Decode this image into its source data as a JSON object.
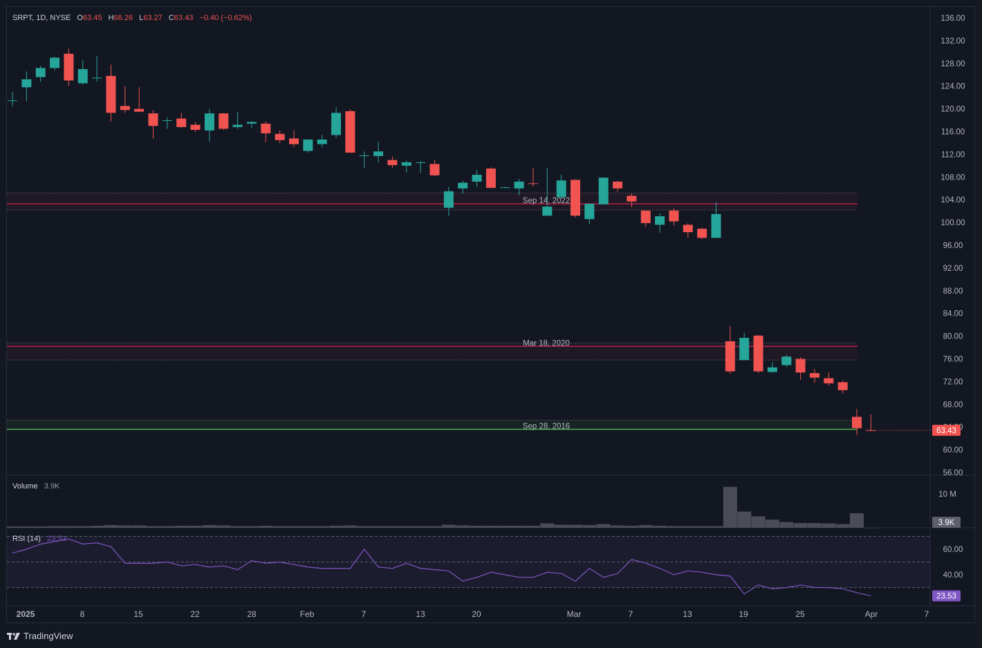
{
  "header": {
    "symbol": "SRPT, 1D, NYSE",
    "open_label": "O",
    "open": "63.45",
    "high_label": "H",
    "high": "66.26",
    "low_label": "L",
    "low": "63.27",
    "close_label": "C",
    "close": "63.43",
    "change": "−0.40 (−0.62%)"
  },
  "price_axis": {
    "ticks": [
      "136.00",
      "132.00",
      "128.00",
      "124.00",
      "120.00",
      "116.00",
      "112.00",
      "108.00",
      "104.00",
      "100.00",
      "96.00",
      "92.00",
      "88.00",
      "84.00",
      "80.00",
      "76.00",
      "72.00",
      "68.00",
      "64.00",
      "60.00",
      "56.00"
    ],
    "last_price_label": "63.43"
  },
  "zones": [
    {
      "label": "Sep 14, 2022",
      "level": 103.3,
      "upper": 105.2,
      "lower": 102.2,
      "color": "#b2224b"
    },
    {
      "label": "Mar 18, 2020",
      "level": 78.2,
      "upper": 78.8,
      "lower": 75.8,
      "color": "#b2224b"
    },
    {
      "label": "Sep 28, 2016",
      "level": 63.6,
      "upper": 65.2,
      "lower": 63.6,
      "color": "#4caf50"
    }
  ],
  "volume": {
    "label": "Volume",
    "value": "3.9K",
    "axis_tick": "10 M",
    "last_label": "3.9K"
  },
  "rsi": {
    "label": "RSI (14)",
    "value": "23.53",
    "ticks": [
      "60.00",
      "40.00"
    ],
    "last_label": "23.53",
    "bands": [
      70,
      50,
      30
    ]
  },
  "time_axis": [
    "2025",
    "8",
    "15",
    "22",
    "28",
    "Feb",
    "7",
    "13",
    "20",
    "Mar",
    "7",
    "13",
    "19",
    "25",
    "Apr",
    "7"
  ],
  "footer": {
    "brand": "TradingView"
  },
  "colors": {
    "up": "#26a69a",
    "down": "#f05350",
    "rsi": "#7e57c2",
    "volume": "#4a4d55"
  },
  "chart_data": {
    "type": "candlestick",
    "symbol": "SRPT",
    "interval": "1D",
    "exchange": "NYSE",
    "ylim": [
      56,
      136
    ],
    "candles": [
      {
        "o": 121.5,
        "h": 123.0,
        "l": 120.5,
        "c": 121.5
      },
      {
        "o": 123.8,
        "h": 126.6,
        "l": 121.4,
        "c": 125.2
      },
      {
        "o": 125.6,
        "h": 127.6,
        "l": 124.8,
        "c": 127.2
      },
      {
        "o": 127.2,
        "h": 129.2,
        "l": 126.8,
        "c": 129.0
      },
      {
        "o": 129.7,
        "h": 130.6,
        "l": 124.0,
        "c": 125.0
      },
      {
        "o": 124.5,
        "h": 128.5,
        "l": 124.3,
        "c": 127.0
      },
      {
        "o": 125.5,
        "h": 129.3,
        "l": 124.8,
        "c": 125.5
      },
      {
        "o": 125.8,
        "h": 127.8,
        "l": 117.8,
        "c": 119.3
      },
      {
        "o": 120.5,
        "h": 124.0,
        "l": 119.3,
        "c": 119.8
      },
      {
        "o": 120.0,
        "h": 123.8,
        "l": 119.5,
        "c": 119.5
      },
      {
        "o": 119.2,
        "h": 119.8,
        "l": 114.8,
        "c": 117.0
      },
      {
        "o": 118.0,
        "h": 118.5,
        "l": 116.5,
        "c": 118.0
      },
      {
        "o": 118.3,
        "h": 119.3,
        "l": 116.7,
        "c": 116.8
      },
      {
        "o": 117.2,
        "h": 117.7,
        "l": 115.9,
        "c": 116.3
      },
      {
        "o": 116.2,
        "h": 120.0,
        "l": 114.2,
        "c": 119.2
      },
      {
        "o": 119.2,
        "h": 119.3,
        "l": 116.3,
        "c": 116.5
      },
      {
        "o": 116.8,
        "h": 119.5,
        "l": 116.5,
        "c": 117.2
      },
      {
        "o": 117.4,
        "h": 117.8,
        "l": 116.6,
        "c": 117.7
      },
      {
        "o": 117.4,
        "h": 117.8,
        "l": 114.1,
        "c": 115.7
      },
      {
        "o": 115.6,
        "h": 116.2,
        "l": 114.0,
        "c": 114.5
      },
      {
        "o": 114.8,
        "h": 116.2,
        "l": 113.3,
        "c": 113.8
      },
      {
        "o": 112.6,
        "h": 114.6,
        "l": 112.3,
        "c": 114.6
      },
      {
        "o": 113.8,
        "h": 115.4,
        "l": 113.2,
        "c": 114.6
      },
      {
        "o": 115.4,
        "h": 120.3,
        "l": 114.9,
        "c": 119.3
      },
      {
        "o": 119.6,
        "h": 119.9,
        "l": 112.3,
        "c": 112.3
      },
      {
        "o": 111.8,
        "h": 112.5,
        "l": 109.6,
        "c": 111.8
      },
      {
        "o": 111.7,
        "h": 114.2,
        "l": 110.6,
        "c": 112.5
      },
      {
        "o": 111.0,
        "h": 111.6,
        "l": 109.6,
        "c": 110.1
      },
      {
        "o": 110.0,
        "h": 110.9,
        "l": 108.8,
        "c": 110.6
      },
      {
        "o": 110.6,
        "h": 110.8,
        "l": 108.7,
        "c": 110.6
      },
      {
        "o": 110.3,
        "h": 111.0,
        "l": 108.2,
        "c": 108.3
      },
      {
        "o": 102.6,
        "h": 106.3,
        "l": 101.2,
        "c": 105.5
      },
      {
        "o": 106.0,
        "h": 107.4,
        "l": 105.1,
        "c": 107.0
      },
      {
        "o": 107.2,
        "h": 109.3,
        "l": 106.3,
        "c": 108.4
      },
      {
        "o": 109.5,
        "h": 109.7,
        "l": 106.0,
        "c": 106.1
      },
      {
        "o": 106.2,
        "h": 106.3,
        "l": 106.0,
        "c": 106.2
      },
      {
        "o": 106.0,
        "h": 107.7,
        "l": 104.8,
        "c": 107.2
      },
      {
        "o": 106.9,
        "h": 109.6,
        "l": 106.3,
        "c": 106.8
      },
      {
        "o": 101.2,
        "h": 109.6,
        "l": 101.2,
        "c": 102.8
      },
      {
        "o": 104.5,
        "h": 108.4,
        "l": 104.2,
        "c": 107.4
      },
      {
        "o": 107.5,
        "h": 107.6,
        "l": 100.9,
        "c": 101.2
      },
      {
        "o": 100.6,
        "h": 103.4,
        "l": 99.7,
        "c": 103.3
      },
      {
        "o": 103.2,
        "h": 107.9,
        "l": 103.2,
        "c": 107.9
      },
      {
        "o": 107.2,
        "h": 107.3,
        "l": 105.4,
        "c": 106.0
      },
      {
        "o": 104.7,
        "h": 105.1,
        "l": 102.7,
        "c": 103.7
      },
      {
        "o": 102.1,
        "h": 102.1,
        "l": 99.2,
        "c": 99.9
      },
      {
        "o": 99.6,
        "h": 101.6,
        "l": 98.2,
        "c": 101.1
      },
      {
        "o": 102.1,
        "h": 102.5,
        "l": 99.5,
        "c": 100.2
      },
      {
        "o": 99.6,
        "h": 99.9,
        "l": 97.3,
        "c": 98.3
      },
      {
        "o": 98.9,
        "h": 99.1,
        "l": 97.1,
        "c": 97.3
      },
      {
        "o": 97.3,
        "h": 103.6,
        "l": 97.3,
        "c": 101.5
      },
      {
        "o": 79.1,
        "h": 81.8,
        "l": 73.4,
        "c": 73.8
      },
      {
        "o": 75.8,
        "h": 80.6,
        "l": 75.8,
        "c": 79.7
      },
      {
        "o": 80.1,
        "h": 80.2,
        "l": 73.5,
        "c": 73.8
      },
      {
        "o": 73.7,
        "h": 75.4,
        "l": 73.5,
        "c": 74.5
      },
      {
        "o": 74.9,
        "h": 76.7,
        "l": 74.6,
        "c": 76.4
      },
      {
        "o": 76.0,
        "h": 76.3,
        "l": 72.3,
        "c": 73.6
      },
      {
        "o": 73.5,
        "h": 74.2,
        "l": 71.8,
        "c": 72.7
      },
      {
        "o": 72.6,
        "h": 73.6,
        "l": 71.3,
        "c": 71.7
      },
      {
        "o": 71.9,
        "h": 72.2,
        "l": 69.9,
        "c": 70.5
      },
      {
        "o": 65.8,
        "h": 67.2,
        "l": 62.6,
        "c": 63.8
      },
      {
        "o": 63.45,
        "h": 66.26,
        "l": 63.27,
        "c": 63.43
      }
    ],
    "volume_millions": [
      0.4,
      0.4,
      0.4,
      0.5,
      0.5,
      0.5,
      0.6,
      0.8,
      0.7,
      0.7,
      0.5,
      0.5,
      0.6,
      0.6,
      0.8,
      0.7,
      0.5,
      0.5,
      0.6,
      0.5,
      0.5,
      0.5,
      0.5,
      0.6,
      0.7,
      0.5,
      0.5,
      0.5,
      0.5,
      0.5,
      0.5,
      0.9,
      0.7,
      0.6,
      0.6,
      0.6,
      0.6,
      0.6,
      1.3,
      0.9,
      0.9,
      0.8,
      1.1,
      0.7,
      0.6,
      0.8,
      0.6,
      0.5,
      0.5,
      0.5,
      0.5,
      12.1,
      4.8,
      3.4,
      2.4,
      1.7,
      1.4,
      1.4,
      1.3,
      1.1,
      4.3,
      0.0039
    ],
    "rsi": [
      57,
      60,
      64,
      66,
      68,
      64,
      65,
      62,
      49,
      49,
      49,
      50,
      47,
      48,
      46,
      47,
      44,
      51,
      49,
      50,
      48,
      46,
      45,
      45,
      45,
      60,
      46,
      45,
      49,
      45,
      44,
      43,
      35,
      38,
      42,
      40,
      38,
      38,
      42,
      41,
      35,
      45,
      38,
      41,
      52,
      49,
      45,
      40,
      43,
      42,
      40,
      39,
      25,
      32,
      29,
      30,
      32,
      30,
      30,
      29,
      26,
      23.53
    ]
  }
}
